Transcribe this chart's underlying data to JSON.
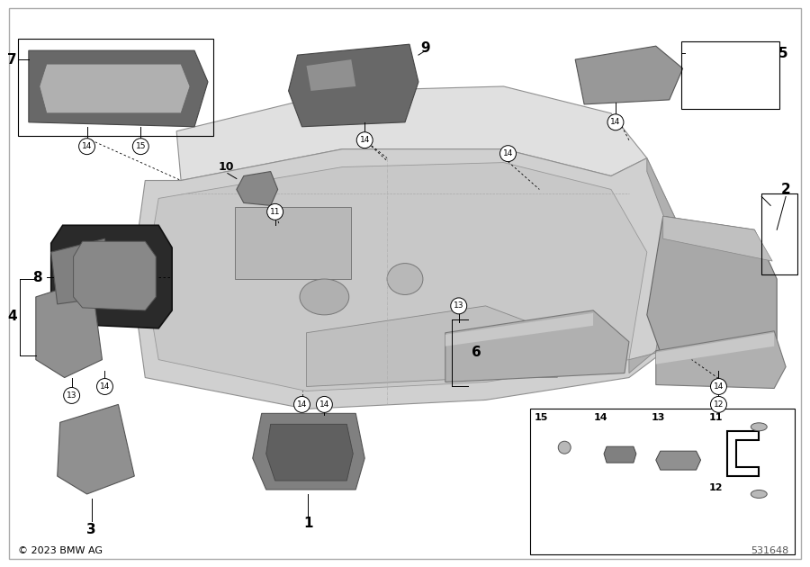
{
  "bg": "#ffffff",
  "copyright": "© 2023 BMW AG",
  "diagram_number": "531648",
  "fig_w": 9.0,
  "fig_h": 6.3,
  "dpi": 100,
  "panel_color": "#d0d0d0",
  "panel_edge": "#888888",
  "part_dark": "#787878",
  "part_med": "#a0a0a0",
  "part_light": "#c8c8c8"
}
